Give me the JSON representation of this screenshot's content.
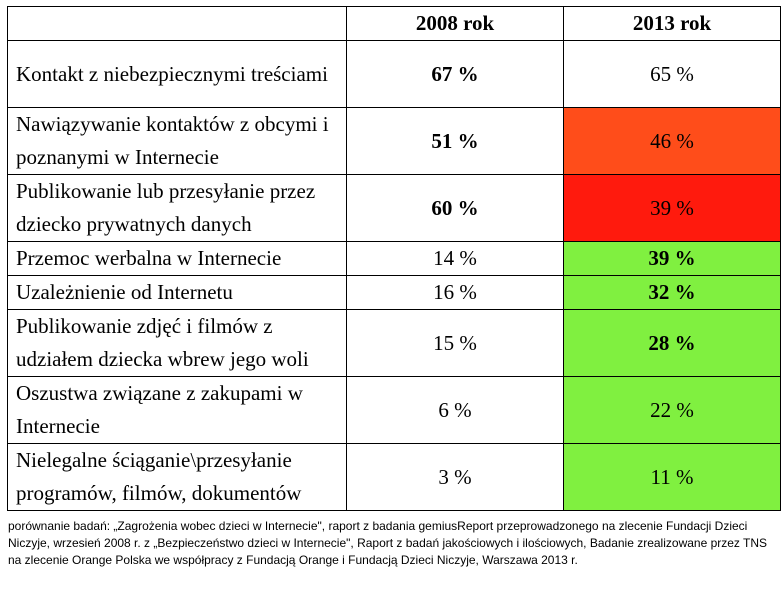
{
  "chart_data": {
    "type": "table",
    "columns": [
      "",
      "2008 rok",
      "2013 rok"
    ],
    "rows": [
      {
        "label": "Kontakt z niebezpiecznymi treściami",
        "v2008": "67 %",
        "v2013": "65 %",
        "bold2008": true,
        "bold2013": false,
        "color2013": "#ffffff"
      },
      {
        "label": "Nawiązywanie kontaktów z obcymi i poznanymi w Internecie",
        "v2008": "51 %",
        "v2013": "46 %",
        "bold2008": true,
        "bold2013": false,
        "color2013": "#ff4d1a"
      },
      {
        "label": "Publikowanie lub przesyłanie przez dziecko prywatnych danych",
        "v2008": "60 %",
        "v2013": "39 %",
        "bold2008": true,
        "bold2013": false,
        "color2013": "#ff1a0d"
      },
      {
        "label": "Przemoc werbalna w Internecie",
        "v2008": "14 %",
        "v2013": "39 %",
        "bold2008": false,
        "bold2013": true,
        "color2013": "#80f040"
      },
      {
        "label": "Uzależnienie od Internetu",
        "v2008": "16 %",
        "v2013": "32 %",
        "bold2008": false,
        "bold2013": true,
        "color2013": "#80f040"
      },
      {
        "label": "Publikowanie zdjęć i filmów z udziałem dziecka wbrew jego woli",
        "v2008": "15 %",
        "v2013": "28 %",
        "bold2008": false,
        "bold2013": true,
        "color2013": "#80f040"
      },
      {
        "label": "Oszustwa związane z zakupami w Internecie",
        "v2008": "6 %",
        "v2013": "22 %",
        "bold2008": false,
        "bold2013": false,
        "color2013": "#80f040"
      },
      {
        "label": "Nielegalne ściąganie\\przesyłanie programów, filmów, dokumentów",
        "v2008": "3 %",
        "v2013": "11 %",
        "bold2008": false,
        "bold2013": false,
        "color2013": "#80f040"
      }
    ]
  },
  "footnote": "porównanie badań: „Zagrożenia wobec dzieci w Internecie\", raport z badania gemiusReport przeprowadzonego na zlecenie Fundacji Dzieci Niczyje, wrzesień 2008 r. z „Bezpieczeństwo dzieci w Internecie\", Raport z badań jakościowych i ilościowych, Badanie zrealizowane przez TNS na zlecenie Orange Polska we współpracy z Fundacją Orange i Fundacją Dzieci Niczyje, Warszawa 2013 r."
}
